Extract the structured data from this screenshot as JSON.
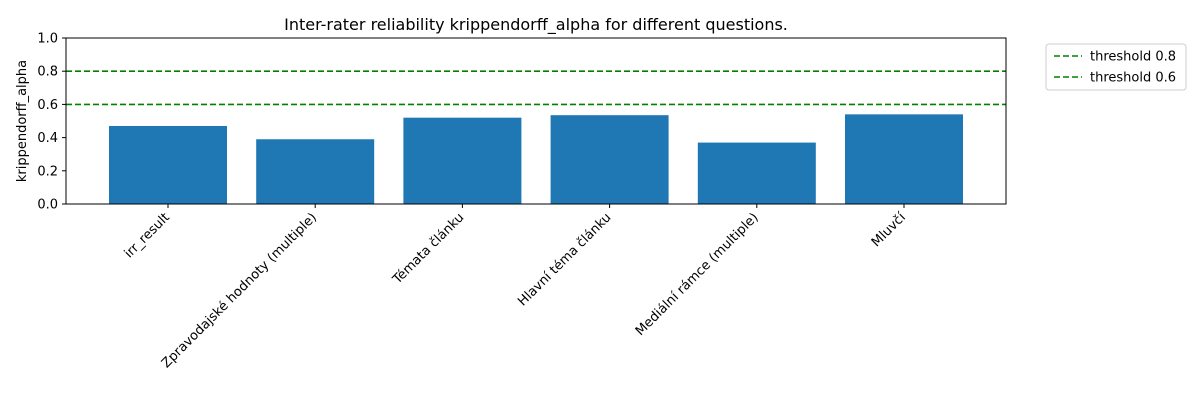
{
  "chart_data": {
    "type": "bar",
    "title": "Inter-rater reliability krippendorff_alpha for different questions.",
    "xlabel": "",
    "ylabel": "krippendorff_alpha",
    "ylim": [
      0,
      1.0
    ],
    "yticks": [
      "0.0",
      "0.2",
      "0.4",
      "0.6",
      "0.8",
      "1.0"
    ],
    "grid": false,
    "legend_position": "outside-right",
    "categories": [
      "irr_result",
      "Zpravodajské hodnoty (multiple)",
      "Témata článku",
      "Hlavní téma článku",
      "Mediální rámce (multiple)",
      "Mluvčí"
    ],
    "values": [
      0.47,
      0.39,
      0.52,
      0.535,
      0.37,
      0.54
    ],
    "bar_color": "#1f77b4",
    "thresholds": [
      {
        "name": "threshold 0.8",
        "value": 0.8,
        "color": "#008000",
        "style": "dashed"
      },
      {
        "name": "threshold 0.6",
        "value": 0.6,
        "color": "#008000",
        "style": "dashed"
      }
    ]
  }
}
